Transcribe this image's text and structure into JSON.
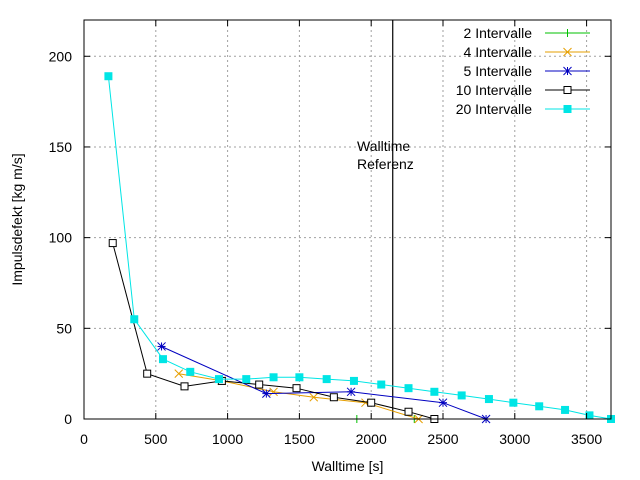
{
  "chart_data": {
    "type": "line",
    "xlabel": "Walltime [s]",
    "ylabel": "Impulsdefekt [kg m/s]",
    "xlim": [
      0,
      3670
    ],
    "ylim": [
      0,
      220
    ],
    "x_ticks": [
      0,
      500,
      1000,
      1500,
      2000,
      2500,
      3000,
      3500
    ],
    "y_ticks": [
      0,
      50,
      100,
      150,
      200
    ],
    "grid": true,
    "legend_position": "top-right",
    "reference_line": {
      "x": 2150,
      "label_line1": "Walltime",
      "label_line2": "Referenz",
      "color": "#000000"
    },
    "series": [
      {
        "name": "2 Intervalle",
        "color": "#00c000",
        "marker": "plus",
        "x": [
          1900,
          2300
        ],
        "y": [
          0,
          0
        ]
      },
      {
        "name": "4 Intervalle",
        "color": "#e69f00",
        "marker": "cross",
        "x": [
          660,
          960,
          1320,
          1600,
          1960,
          2330
        ],
        "y": [
          25,
          21,
          15,
          12,
          9,
          0
        ]
      },
      {
        "name": "5 Intervalle",
        "color": "#0000c0",
        "marker": "star",
        "x": [
          540,
          1270,
          1860,
          2500,
          2800
        ],
        "y": [
          40,
          14,
          15,
          9,
          0
        ]
      },
      {
        "name": "10 Intervalle",
        "color": "#000000",
        "marker": "square-open",
        "x": [
          200,
          440,
          700,
          960,
          1220,
          1480,
          1740,
          2000,
          2260,
          2440
        ],
        "y": [
          97,
          25,
          18,
          21,
          19,
          17,
          12,
          9,
          4,
          0
        ]
      },
      {
        "name": "20 Intervalle",
        "color": "#00e5e5",
        "marker": "square-filled",
        "x": [
          170,
          350,
          550,
          740,
          940,
          1130,
          1320,
          1500,
          1690,
          1880,
          2070,
          2260,
          2440,
          2630,
          2820,
          2990,
          3170,
          3350,
          3520,
          3670
        ],
        "y": [
          189,
          55,
          33,
          26,
          22,
          22,
          23,
          23,
          22,
          21,
          19,
          17,
          15,
          13,
          11,
          9,
          7,
          5,
          2,
          0
        ]
      }
    ]
  }
}
